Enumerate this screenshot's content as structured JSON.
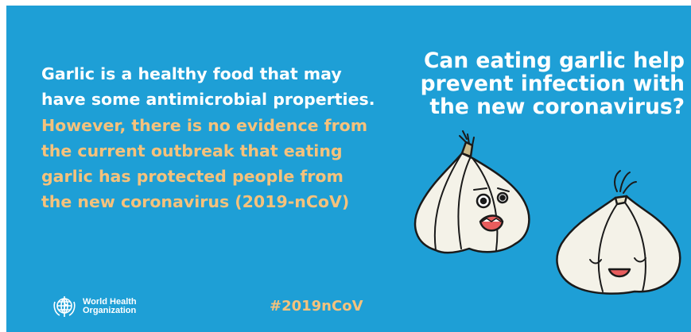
{
  "body": {
    "white_text": "Garlic is a healthy food that may have some antimicrobial properties.",
    "highlight_text": "However, there is no evidence from the current outbreak that eating garlic has protected people from the new coronavirus (2019-nCoV)"
  },
  "question": {
    "line1": "Can eating garlic help",
    "line2": "prevent infection with",
    "line3": "the new coronavirus?"
  },
  "hashtag": "#2019nCoV",
  "logo": {
    "line1": "World Health",
    "line2": "Organization",
    "icon": "who-emblem-icon"
  },
  "colors": {
    "background": "#1e9fd6",
    "highlight": "#f5c27c",
    "text": "#ffffff"
  }
}
